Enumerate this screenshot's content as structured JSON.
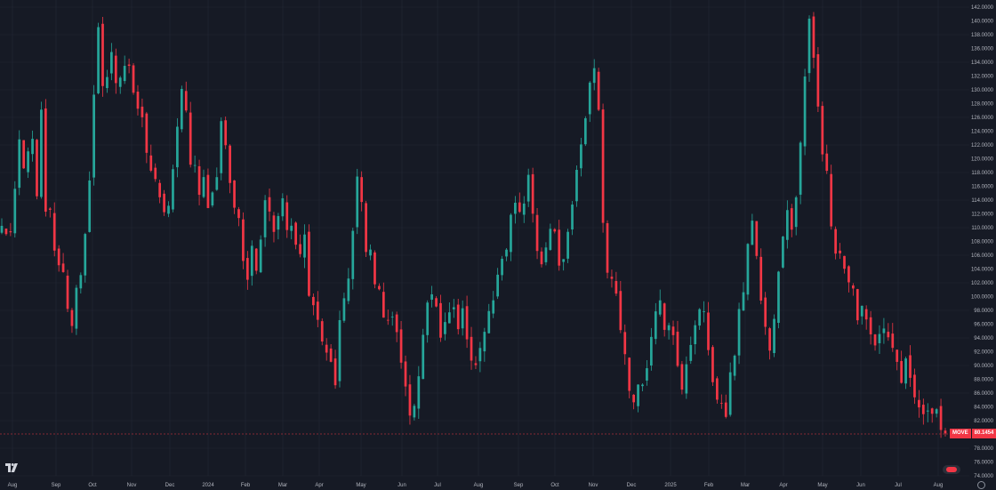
{
  "chart_data": {
    "type": "candlestick",
    "symbol": "MOVE",
    "last_value": "80.1454",
    "colors": {
      "up": "#26a69a",
      "down": "#f23645",
      "background": "#161a25",
      "grid": "#232734",
      "axis_text": "#b2b5be"
    },
    "y_ticks": [
      "74.0000",
      "76.0000",
      "78.0000",
      "80.0000",
      "82.0000",
      "84.0000",
      "86.0000",
      "88.0000",
      "90.0000",
      "92.0000",
      "94.0000",
      "96.0000",
      "98.0000",
      "100.0000",
      "102.0000",
      "104.0000",
      "106.0000",
      "108.0000",
      "110.0000",
      "112.0000",
      "114.0000",
      "116.0000",
      "118.0000",
      "120.0000",
      "122.0000",
      "124.0000",
      "126.0000",
      "128.0000",
      "130.0000",
      "132.0000",
      "134.0000",
      "136.0000",
      "138.0000",
      "140.0000",
      "142.0000"
    ],
    "x_labels": [
      "Aug",
      "Sep",
      "Oct",
      "Nov",
      "Dec",
      "2024",
      "Feb",
      "Mar",
      "Apr",
      "May",
      "Jun",
      "Jul",
      "Aug",
      "Sep",
      "Oct",
      "Nov",
      "Dec",
      "2025",
      "Feb",
      "Mar",
      "Apr",
      "May",
      "Jun",
      "Jul",
      "Aug"
    ],
    "path": [
      [
        0,
        110
      ],
      [
        2,
        108
      ],
      [
        4,
        122
      ],
      [
        5,
        118
      ],
      [
        6,
        121
      ],
      [
        7,
        124
      ],
      [
        8,
        116
      ],
      [
        9,
        128
      ],
      [
        10,
        113
      ],
      [
        11,
        111
      ],
      [
        12,
        106
      ],
      [
        13,
        104
      ],
      [
        14,
        104
      ],
      [
        15,
        99
      ],
      [
        16,
        97
      ],
      [
        17,
        100
      ],
      [
        18,
        102
      ],
      [
        19,
        108
      ],
      [
        20,
        117
      ],
      [
        21,
        130
      ],
      [
        22,
        138
      ],
      [
        23,
        132
      ],
      [
        24,
        131
      ],
      [
        25,
        134
      ],
      [
        26,
        130
      ],
      [
        27,
        133
      ],
      [
        28,
        134
      ],
      [
        29,
        133
      ],
      [
        30,
        131
      ],
      [
        31,
        128
      ],
      [
        32,
        126
      ],
      [
        33,
        120
      ],
      [
        34,
        119
      ],
      [
        35,
        117
      ],
      [
        36,
        116
      ],
      [
        37,
        112
      ],
      [
        38,
        113
      ],
      [
        39,
        118
      ],
      [
        40,
        124
      ],
      [
        41,
        129
      ],
      [
        42,
        126
      ],
      [
        43,
        120
      ],
      [
        44,
        118
      ],
      [
        45,
        115
      ],
      [
        46,
        116
      ],
      [
        47,
        114
      ],
      [
        48,
        114
      ],
      [
        49,
        118
      ],
      [
        50,
        127
      ],
      [
        51,
        122
      ],
      [
        52,
        118
      ],
      [
        53,
        114
      ],
      [
        54,
        110
      ],
      [
        55,
        106
      ],
      [
        56,
        103
      ],
      [
        57,
        107
      ],
      [
        58,
        103
      ],
      [
        59,
        108
      ],
      [
        60,
        113
      ],
      [
        61,
        112
      ],
      [
        62,
        109
      ],
      [
        63,
        113
      ],
      [
        64,
        115
      ],
      [
        65,
        111
      ],
      [
        66,
        109
      ],
      [
        67,
        106
      ],
      [
        68,
        107
      ],
      [
        69,
        108
      ],
      [
        70,
        101
      ],
      [
        71,
        99
      ],
      [
        72,
        98
      ],
      [
        73,
        95
      ],
      [
        74,
        93
      ],
      [
        75,
        91
      ],
      [
        76,
        87
      ],
      [
        77,
        95
      ],
      [
        78,
        100
      ],
      [
        79,
        103
      ],
      [
        80,
        110
      ],
      [
        81,
        117
      ],
      [
        82,
        114
      ],
      [
        83,
        108
      ],
      [
        84,
        106
      ],
      [
        85,
        102
      ],
      [
        86,
        100
      ],
      [
        87,
        98
      ],
      [
        88,
        96
      ],
      [
        89,
        97
      ],
      [
        90,
        94
      ],
      [
        91,
        90
      ],
      [
        92,
        87
      ],
      [
        93,
        83
      ],
      [
        94,
        85
      ],
      [
        95,
        90
      ],
      [
        96,
        95
      ],
      [
        97,
        99
      ],
      [
        98,
        101
      ],
      [
        99,
        97
      ],
      [
        100,
        93
      ],
      [
        101,
        96
      ],
      [
        102,
        99
      ],
      [
        103,
        97
      ],
      [
        104,
        95
      ],
      [
        105,
        98
      ],
      [
        106,
        95
      ],
      [
        107,
        92
      ],
      [
        108,
        89
      ],
      [
        109,
        92
      ],
      [
        110,
        95
      ],
      [
        111,
        97
      ],
      [
        112,
        99
      ],
      [
        113,
        102
      ],
      [
        114,
        106
      ],
      [
        115,
        108
      ],
      [
        116,
        112
      ],
      [
        117,
        115
      ],
      [
        118,
        111
      ],
      [
        119,
        114
      ],
      [
        120,
        117
      ],
      [
        121,
        112
      ],
      [
        122,
        108
      ],
      [
        123,
        106
      ],
      [
        124,
        107
      ],
      [
        125,
        110
      ],
      [
        126,
        108
      ],
      [
        127,
        106
      ],
      [
        128,
        104
      ],
      [
        129,
        108
      ],
      [
        130,
        113
      ],
      [
        131,
        118
      ],
      [
        132,
        122
      ],
      [
        133,
        126
      ],
      [
        134,
        131
      ],
      [
        135,
        134
      ],
      [
        136,
        128
      ],
      [
        137,
        112
      ],
      [
        138,
        104
      ],
      [
        139,
        101
      ],
      [
        140,
        100
      ],
      [
        141,
        96
      ],
      [
        142,
        91
      ],
      [
        143,
        87
      ],
      [
        144,
        84
      ],
      [
        145,
        86
      ],
      [
        146,
        88
      ],
      [
        147,
        91
      ],
      [
        148,
        94
      ],
      [
        149,
        97
      ],
      [
        150,
        99
      ],
      [
        151,
        96
      ],
      [
        152,
        95
      ],
      [
        153,
        93
      ],
      [
        154,
        91
      ],
      [
        155,
        88
      ],
      [
        156,
        91
      ],
      [
        157,
        94
      ],
      [
        158,
        96
      ],
      [
        159,
        99
      ],
      [
        160,
        97
      ],
      [
        161,
        93
      ],
      [
        162,
        89
      ],
      [
        163,
        86
      ],
      [
        164,
        85
      ],
      [
        165,
        84
      ],
      [
        166,
        88
      ],
      [
        167,
        93
      ],
      [
        168,
        97
      ],
      [
        169,
        102
      ],
      [
        170,
        107
      ],
      [
        171,
        112
      ],
      [
        172,
        105
      ],
      [
        173,
        100
      ],
      [
        174,
        96
      ],
      [
        175,
        92
      ],
      [
        176,
        97
      ],
      [
        177,
        103
      ],
      [
        178,
        108
      ],
      [
        179,
        112
      ],
      [
        180,
        110
      ],
      [
        181,
        115
      ],
      [
        182,
        122
      ],
      [
        183,
        131
      ],
      [
        184,
        139
      ],
      [
        185,
        135
      ],
      [
        186,
        129
      ],
      [
        187,
        122
      ],
      [
        188,
        117
      ],
      [
        189,
        110
      ],
      [
        190,
        106
      ],
      [
        191,
        105
      ],
      [
        192,
        103
      ],
      [
        193,
        101
      ],
      [
        194,
        100
      ],
      [
        195,
        98
      ],
      [
        196,
        99
      ],
      [
        197,
        97
      ],
      [
        198,
        96
      ],
      [
        199,
        93
      ],
      [
        200,
        94
      ],
      [
        201,
        95
      ],
      [
        202,
        93
      ],
      [
        203,
        92
      ],
      [
        204,
        90
      ],
      [
        205,
        89
      ],
      [
        206,
        90
      ],
      [
        207,
        88
      ],
      [
        208,
        86
      ],
      [
        209,
        85
      ],
      [
        210,
        84
      ],
      [
        211,
        85
      ],
      [
        212,
        84
      ],
      [
        213,
        83
      ],
      [
        214,
        82
      ],
      [
        215,
        80
      ]
    ]
  }
}
